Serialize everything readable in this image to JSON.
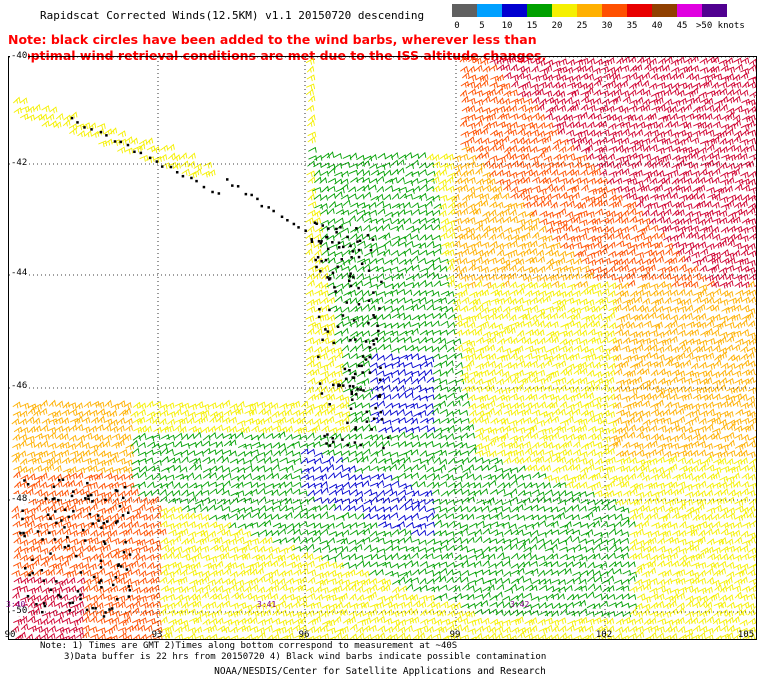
{
  "title": "Rapidscat Corrected Winds(12.5KM) v1.1 20150720 descending",
  "note_line1": "Note: black circles have been added to the wind barbs, wherever less than",
  "note_line2": "optimal wind retrieval conditions are met due to the ISS altitude changes.",
  "legend": {
    "colors": [
      "#606060",
      "#00a0ff",
      "#0000d0",
      "#00a000",
      "#f5f000",
      "#ffb000",
      "#ff5000",
      "#e80000",
      "#904000",
      "#e000e0",
      "#500090"
    ],
    "ticks": [
      "0",
      "5",
      "10",
      "15",
      "20",
      "25",
      "30",
      "35",
      "40",
      "45",
      ">50 knots"
    ]
  },
  "axes": {
    "y_labels": [
      "-40",
      "-42",
      "-44",
      "-46",
      "-48",
      "-50"
    ],
    "x_labels": [
      "90",
      "93",
      "96",
      "99",
      "102",
      "105"
    ]
  },
  "time_labels": [
    "3:40",
    "3:41",
    "3:42"
  ],
  "footnote_line1": "Note: 1) Times are GMT 2)Times along bottom correspond to measurement at ~40S",
  "footnote_line2": "3)Data buffer is 22 hrs from 20150720 4) Black wind barbs indicate possible contamination",
  "credit": "NOAA/NESDIS/Center for Satellite Applications and Research"
}
